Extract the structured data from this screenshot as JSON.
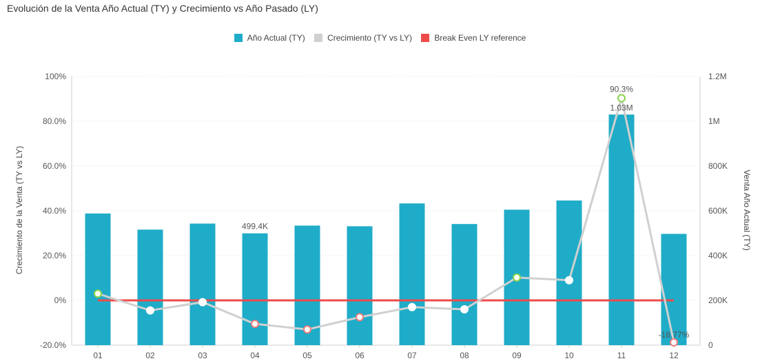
{
  "chart_data": {
    "type": "bar",
    "title": "Evolución de la Venta Año Actual (TY) y Crecimiento vs Año Pasado (LY)",
    "categories": [
      "01",
      "02",
      "03",
      "04",
      "05",
      "06",
      "07",
      "08",
      "09",
      "10",
      "11",
      "12"
    ],
    "series": [
      {
        "name": "Año Actual (TY)",
        "type": "bar",
        "axis": "right",
        "values": [
          588000,
          516000,
          543000,
          499400,
          534000,
          531000,
          633000,
          541000,
          605000,
          646000,
          1030000,
          497000
        ]
      },
      {
        "name": "Crecimiento (TY vs LY)",
        "type": "line",
        "axis": "left",
        "values": [
          3.0,
          -4.5,
          -0.8,
          -10.5,
          -13.0,
          -7.5,
          -3.0,
          -4.0,
          10.2,
          9.0,
          90.3,
          -18.77
        ]
      },
      {
        "name": "Break Even LY reference",
        "type": "line",
        "axis": "left",
        "values": [
          0,
          0,
          0,
          0,
          0,
          0,
          0,
          0,
          0,
          0,
          0,
          0
        ]
      }
    ],
    "data_labels": [
      {
        "series": 0,
        "index": 3,
        "text": "499.4K"
      },
      {
        "series": 0,
        "index": 10,
        "text": "1.03M"
      },
      {
        "series": 1,
        "index": 10,
        "text": "90.3%"
      },
      {
        "series": 1,
        "index": 11,
        "text": "-18.77%"
      }
    ],
    "ylabel_left": "Crecimiento de la Venta (TY vs LY)",
    "ylabel_right": "Venta Año Actual (TY)",
    "ylim_left": [
      -20,
      100
    ],
    "ylim_right": [
      0,
      1200000
    ],
    "left_ticks": [
      "-20.0%",
      "0%",
      "20.0%",
      "40.0%",
      "60.0%",
      "80.0%",
      "100%"
    ],
    "right_ticks": [
      "0",
      "200K",
      "400K",
      "600K",
      "800K",
      "1M",
      "1.2M"
    ],
    "grid": true,
    "legend_position": "top-center",
    "colors": {
      "bar": "#1FACC8",
      "growth_line": "#D0D0D0",
      "breakeven": "#EF4A4A",
      "marker_positive": "#8BD449",
      "marker_negative": "#F07C7C",
      "marker_neutral": "#ffffff"
    }
  }
}
